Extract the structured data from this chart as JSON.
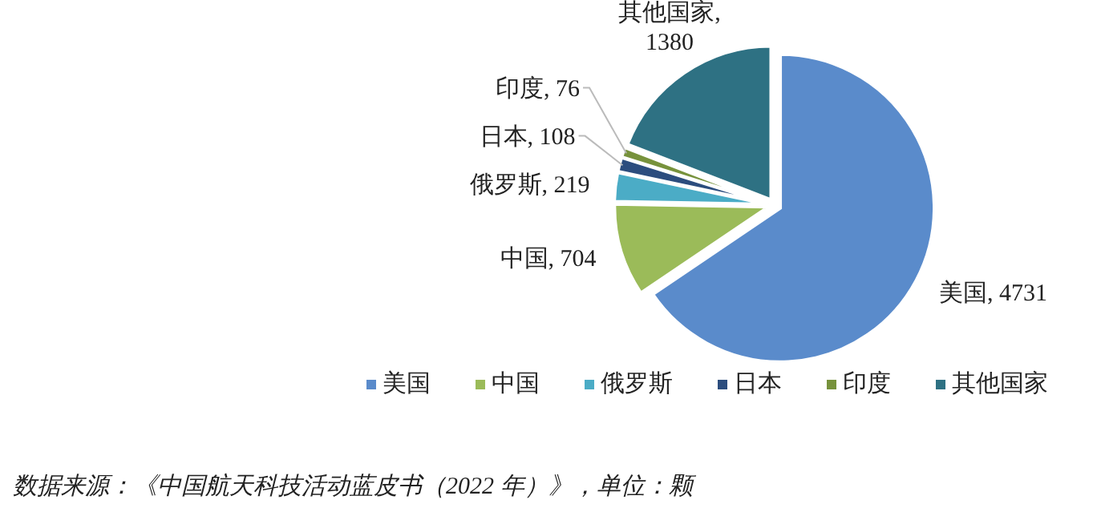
{
  "chart_data": {
    "type": "pie",
    "categories": [
      "美国",
      "中国",
      "俄罗斯",
      "日本",
      "印度",
      "其他国家"
    ],
    "values": [
      4731,
      704,
      219,
      108,
      76,
      1380
    ],
    "colors": [
      "#5a8bcb",
      "#9bbb59",
      "#4bacc6",
      "#2c4d7e",
      "#77923c",
      "#2e7183"
    ],
    "value_labels": [
      "美国, 4731",
      "中国, 704",
      "俄罗斯, 219",
      "日本, 108",
      "印度, 76",
      "其他国家, 1380"
    ],
    "legend": "bottom",
    "annotations": [
      "数据来源：《中国航天科技活动蓝皮书（2022 年）》，单位：颗"
    ]
  }
}
